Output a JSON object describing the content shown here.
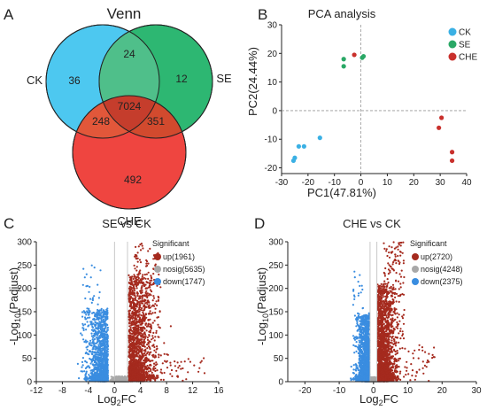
{
  "chart_data": [
    {
      "panel": "A",
      "type": "venn",
      "title": "Venn",
      "sets": [
        "CK",
        "SE",
        "CHE"
      ],
      "colors": {
        "CK": "#4dc8f0",
        "SE": "#22b36a",
        "CHE": "#ee3b36"
      },
      "regions": {
        "CK_only": "36",
        "SE_only": "12",
        "CHE_only": "492",
        "CK_SE": "24",
        "CK_CHE": "248",
        "SE_CHE": "351",
        "CK_SE_CHE": "7024"
      }
    },
    {
      "panel": "B",
      "type": "scatter",
      "title": "PCA analysis",
      "xlabel": "PC1(47.81%)",
      "ylabel": "PC2(24.44%)",
      "xlim": [
        -30,
        40
      ],
      "ylim": [
        -22,
        30
      ],
      "xticks": [
        "-30",
        "-20",
        "-10",
        "0",
        "10",
        "20",
        "30",
        "40"
      ],
      "yticks": [
        "-20",
        "-10",
        "0",
        "10",
        "20",
        "30"
      ],
      "series": [
        {
          "name": "CK",
          "color": "#3ab0e4",
          "points": [
            [
              -25.5,
              -17.5
            ],
            [
              -25,
              -16.5
            ],
            [
              -23.5,
              -12.5
            ],
            [
              -21.5,
              -12.5
            ],
            [
              -15.5,
              -9.5
            ]
          ]
        },
        {
          "name": "SE",
          "color": "#2aa866",
          "points": [
            [
              -6.5,
              18
            ],
            [
              -6.5,
              15.5
            ],
            [
              0.5,
              18.5
            ],
            [
              1,
              19
            ]
          ]
        },
        {
          "name": "CHE",
          "color": "#c9302c",
          "points": [
            [
              -2.5,
              19.5
            ],
            [
              29.5,
              -6
            ],
            [
              30.5,
              -2.5
            ],
            [
              34.5,
              -14.5
            ],
            [
              34.5,
              -17.5
            ]
          ]
        }
      ]
    },
    {
      "panel": "C",
      "type": "scatter",
      "title": "SE vs CK",
      "xlabel_main": "Log",
      "xlabel_sub": "2",
      "xlabel_tail": "FC",
      "ylabel_pre": "-Log",
      "ylabel_sub": "10",
      "ylabel_tail": "(Padjust)",
      "xlim": [
        -12,
        16
      ],
      "ylim": [
        0,
        300
      ],
      "xticks": [
        "-12",
        "-8",
        "-4",
        "0",
        "4",
        "8",
        "12",
        "16"
      ],
      "yticks": [
        "0",
        "50",
        "100",
        "150",
        "200",
        "250",
        "300"
      ],
      "threshold_lines": [
        0,
        2
      ],
      "legend_title": "Significant",
      "legend": [
        {
          "label": "up(1961)",
          "color": "#a52a1e"
        },
        {
          "label": "nosig(5635)",
          "color": "#a8a8a8"
        },
        {
          "label": "down(1747)",
          "color": "#3a8de0"
        }
      ]
    },
    {
      "panel": "D",
      "type": "scatter",
      "title": "CHE vs CK",
      "xlabel_main": "Log",
      "xlabel_sub": "2",
      "xlabel_tail": "FC",
      "ylabel_pre": "-Log",
      "ylabel_sub": "10",
      "ylabel_tail": "(Padjust)",
      "xlim": [
        -25,
        30
      ],
      "ylim": [
        0,
        300
      ],
      "xticks": [
        "-20",
        "-10",
        "0",
        "10",
        "20",
        "30"
      ],
      "yticks": [
        "0",
        "50",
        "100",
        "150",
        "200",
        "250",
        "300"
      ],
      "threshold_lines": [
        -1,
        1
      ],
      "legend_title": "Significant",
      "legend": [
        {
          "label": "up(2720)",
          "color": "#a52a1e"
        },
        {
          "label": "nosig(4248)",
          "color": "#a8a8a8"
        },
        {
          "label": "down(2375)",
          "color": "#3a8de0"
        }
      ]
    }
  ]
}
